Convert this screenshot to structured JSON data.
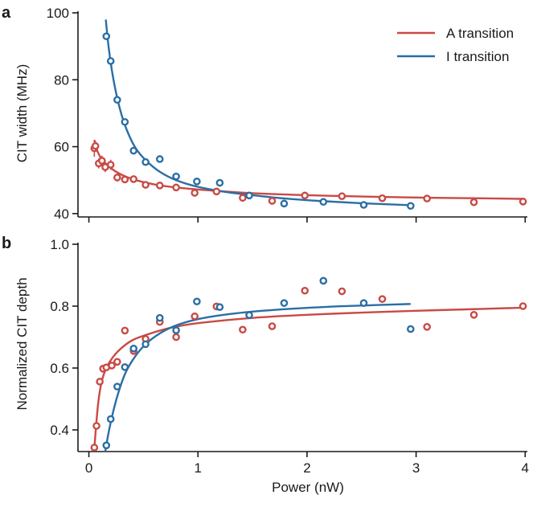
{
  "colors": {
    "A": "#c94a45",
    "I": "#2b6ea4",
    "axis": "#1a1a1a"
  },
  "chart_data": [
    {
      "panel": "a",
      "type": "scatter",
      "xlabel": "",
      "ylabel": "CIT width (MHz)",
      "xlim": [
        -0.1,
        4.02
      ],
      "ylim": [
        39,
        100
      ],
      "yticks": [
        40,
        60,
        80,
        100
      ],
      "xticks": [
        0,
        1,
        2,
        3,
        4
      ],
      "show_xtick_labels": false,
      "grid": false,
      "legend": {
        "placement": "top-right",
        "entries": [
          "A transition",
          "I transition"
        ]
      },
      "series": [
        {
          "name": "A transition",
          "color_key": "A",
          "points": [
            {
              "x": 0.05,
              "y": 59.5,
              "err": 2.5
            },
            {
              "x": 0.06,
              "y": 60.2,
              "err": 1.5
            },
            {
              "x": 0.09,
              "y": 55.0,
              "err": 1.5
            },
            {
              "x": 0.12,
              "y": 55.8,
              "err": 1.5
            },
            {
              "x": 0.15,
              "y": 53.9,
              "err": 1.5
            },
            {
              "x": 0.2,
              "y": 54.6,
              "err": 1.5
            },
            {
              "x": 0.26,
              "y": 50.8,
              "err": 1.2
            },
            {
              "x": 0.33,
              "y": 50.2,
              "err": 0
            },
            {
              "x": 0.41,
              "y": 50.3,
              "err": 0
            },
            {
              "x": 0.52,
              "y": 48.6,
              "err": 0
            },
            {
              "x": 0.65,
              "y": 48.4,
              "err": 0
            },
            {
              "x": 0.8,
              "y": 47.8,
              "err": 0
            },
            {
              "x": 0.97,
              "y": 46.2,
              "err": 0
            },
            {
              "x": 1.17,
              "y": 46.6,
              "err": 0
            },
            {
              "x": 1.41,
              "y": 44.7,
              "err": 0
            },
            {
              "x": 1.68,
              "y": 43.8,
              "err": 0
            },
            {
              "x": 1.98,
              "y": 45.4,
              "err": 0
            },
            {
              "x": 2.32,
              "y": 45.2,
              "err": 0
            },
            {
              "x": 2.69,
              "y": 44.6,
              "err": 0
            },
            {
              "x": 3.1,
              "y": 44.5,
              "err": 0
            },
            {
              "x": 3.53,
              "y": 43.4,
              "err": 0
            },
            {
              "x": 3.98,
              "y": 43.6,
              "err": 0
            }
          ],
          "fit": {
            "x0": 0.05,
            "x1": 3.98,
            "points": [
              [
                0.05,
                62
              ],
              [
                0.08,
                58.5
              ],
              [
                0.12,
                56.2
              ],
              [
                0.18,
                54.2
              ],
              [
                0.25,
                52.5
              ],
              [
                0.35,
                50.9
              ],
              [
                0.5,
                49.4
              ],
              [
                0.7,
                48.2
              ],
              [
                1.0,
                47.2
              ],
              [
                1.5,
                46.1
              ],
              [
                2.0,
                45.5
              ],
              [
                2.5,
                45.1
              ],
              [
                3.0,
                44.8
              ],
              [
                3.5,
                44.6
              ],
              [
                3.98,
                44.4
              ]
            ]
          }
        },
        {
          "name": "I transition",
          "color_key": "I",
          "points": [
            {
              "x": 0.16,
              "y": 93.0,
              "err": 0
            },
            {
              "x": 0.2,
              "y": 85.6,
              "err": 0
            },
            {
              "x": 0.26,
              "y": 74.0,
              "err": 0
            },
            {
              "x": 0.33,
              "y": 67.4,
              "err": 0
            },
            {
              "x": 0.41,
              "y": 58.8,
              "err": 0
            },
            {
              "x": 0.52,
              "y": 55.4,
              "err": 0
            },
            {
              "x": 0.65,
              "y": 56.3,
              "err": 0
            },
            {
              "x": 0.8,
              "y": 51.1,
              "err": 0
            },
            {
              "x": 0.99,
              "y": 49.6,
              "err": 0
            },
            {
              "x": 1.2,
              "y": 49.2,
              "err": 0
            },
            {
              "x": 1.47,
              "y": 45.4,
              "err": 0
            },
            {
              "x": 1.79,
              "y": 43.0,
              "err": 0
            },
            {
              "x": 2.15,
              "y": 43.5,
              "err": 0
            },
            {
              "x": 2.52,
              "y": 42.6,
              "err": 0
            },
            {
              "x": 2.95,
              "y": 42.3,
              "err": 0
            }
          ],
          "fit": {
            "x0": 0.155,
            "x1": 2.95,
            "points": [
              [
                0.155,
                98
              ],
              [
                0.18,
                90
              ],
              [
                0.21,
                83
              ],
              [
                0.25,
                76
              ],
              [
                0.3,
                69.5
              ],
              [
                0.36,
                64
              ],
              [
                0.43,
                59.5
              ],
              [
                0.52,
                56
              ],
              [
                0.65,
                52.5
              ],
              [
                0.8,
                50
              ],
              [
                1.0,
                48
              ],
              [
                1.25,
                46.5
              ],
              [
                1.5,
                45.5
              ],
              [
                1.8,
                44.5
              ],
              [
                2.1,
                43.8
              ],
              [
                2.5,
                43.1
              ],
              [
                2.95,
                42.5
              ]
            ]
          }
        }
      ]
    },
    {
      "panel": "b",
      "type": "scatter",
      "xlabel": "Power (nW)",
      "ylabel": "Normalized CIT depth",
      "xlim": [
        -0.1,
        4.02
      ],
      "ylim": [
        0.33,
        1.0
      ],
      "yticks": [
        0.4,
        0.6,
        0.8,
        1.0
      ],
      "ytick_labels": [
        "0.4",
        "0.6",
        "0.8",
        "1.0"
      ],
      "xticks": [
        0,
        1,
        2,
        3,
        4
      ],
      "xtick_labels": [
        "0",
        "1",
        "2",
        "3",
        "4"
      ],
      "show_xtick_labels": true,
      "grid": false,
      "series": [
        {
          "name": "A transition",
          "color_key": "A",
          "points": [
            {
              "x": 0.05,
              "y": 0.343
            },
            {
              "x": 0.07,
              "y": 0.413
            },
            {
              "x": 0.1,
              "y": 0.556
            },
            {
              "x": 0.13,
              "y": 0.598
            },
            {
              "x": 0.16,
              "y": 0.602
            },
            {
              "x": 0.21,
              "y": 0.608
            },
            {
              "x": 0.26,
              "y": 0.62
            },
            {
              "x": 0.33,
              "y": 0.721
            },
            {
              "x": 0.41,
              "y": 0.655
            },
            {
              "x": 0.52,
              "y": 0.694
            },
            {
              "x": 0.65,
              "y": 0.749
            },
            {
              "x": 0.8,
              "y": 0.7
            },
            {
              "x": 0.97,
              "y": 0.767
            },
            {
              "x": 1.17,
              "y": 0.799
            },
            {
              "x": 1.41,
              "y": 0.724
            },
            {
              "x": 1.68,
              "y": 0.735
            },
            {
              "x": 1.98,
              "y": 0.85
            },
            {
              "x": 2.32,
              "y": 0.848
            },
            {
              "x": 2.69,
              "y": 0.823
            },
            {
              "x": 3.1,
              "y": 0.733
            },
            {
              "x": 3.53,
              "y": 0.772
            },
            {
              "x": 3.98,
              "y": 0.8
            }
          ],
          "fit": {
            "x0": 0.05,
            "x1": 3.98,
            "points": [
              [
                0.05,
                0.34
              ],
              [
                0.07,
                0.43
              ],
              [
                0.09,
                0.5
              ],
              [
                0.12,
                0.56
              ],
              [
                0.16,
                0.6
              ],
              [
                0.22,
                0.635
              ],
              [
                0.3,
                0.665
              ],
              [
                0.4,
                0.69
              ],
              [
                0.55,
                0.71
              ],
              [
                0.75,
                0.73
              ],
              [
                1.0,
                0.745
              ],
              [
                1.5,
                0.762
              ],
              [
                2.0,
                0.772
              ],
              [
                2.5,
                0.779
              ],
              [
                3.0,
                0.785
              ],
              [
                3.5,
                0.79
              ],
              [
                3.98,
                0.795
              ]
            ]
          }
        },
        {
          "name": "I transition",
          "color_key": "I",
          "points": [
            {
              "x": 0.16,
              "y": 0.35
            },
            {
              "x": 0.2,
              "y": 0.435
            },
            {
              "x": 0.26,
              "y": 0.54
            },
            {
              "x": 0.33,
              "y": 0.603
            },
            {
              "x": 0.41,
              "y": 0.663
            },
            {
              "x": 0.52,
              "y": 0.677
            },
            {
              "x": 0.65,
              "y": 0.762
            },
            {
              "x": 0.8,
              "y": 0.722
            },
            {
              "x": 0.99,
              "y": 0.815
            },
            {
              "x": 1.2,
              "y": 0.797
            },
            {
              "x": 1.47,
              "y": 0.771
            },
            {
              "x": 1.79,
              "y": 0.81
            },
            {
              "x": 2.15,
              "y": 0.882
            },
            {
              "x": 2.52,
              "y": 0.81
            },
            {
              "x": 2.95,
              "y": 0.726
            }
          ],
          "fit": {
            "x0": 0.15,
            "x1": 2.95,
            "points": [
              [
                0.15,
                0.33
              ],
              [
                0.18,
                0.39
              ],
              [
                0.22,
                0.455
              ],
              [
                0.27,
                0.52
              ],
              [
                0.33,
                0.58
              ],
              [
                0.4,
                0.625
              ],
              [
                0.5,
                0.67
              ],
              [
                0.62,
                0.705
              ],
              [
                0.78,
                0.735
              ],
              [
                1.0,
                0.758
              ],
              [
                1.3,
                0.775
              ],
              [
                1.7,
                0.788
              ],
              [
                2.2,
                0.798
              ],
              [
                2.6,
                0.803
              ],
              [
                2.95,
                0.807
              ]
            ]
          }
        }
      ]
    }
  ]
}
